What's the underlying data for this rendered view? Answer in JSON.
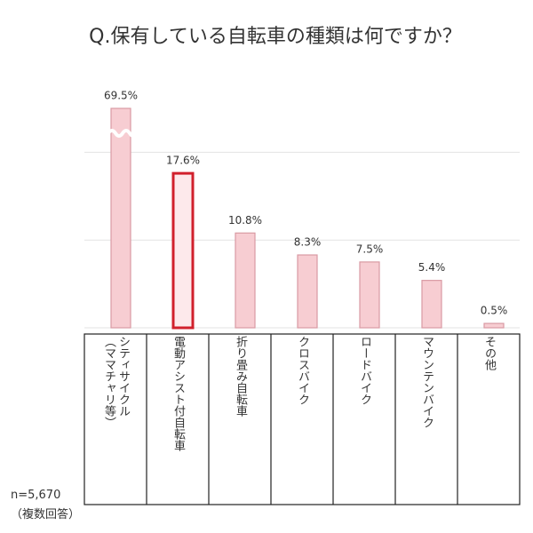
{
  "chart_data": {
    "type": "bar",
    "title": "Q.保有している自転車の種類は何ですか？",
    "categories": [
      "シティサイクル\n（ママチャリ等）",
      "電動アシスト付自転車",
      "折り畳み自転車",
      "クロスバイク",
      "ロードバイク",
      "マウンテンバイク",
      "その他"
    ],
    "values": [
      69.5,
      17.6,
      10.8,
      8.3,
      7.5,
      5.4,
      0.5
    ],
    "value_labels": [
      "69.5%",
      "17.6%",
      "10.8%",
      "8.3%",
      "7.5%",
      "5.4%",
      "0.5%"
    ],
    "colors": [
      "#f7cdd2",
      "#fde9eb",
      "#f7cdd2",
      "#f7cdd2",
      "#f7cdd2",
      "#f7cdd2",
      "#f7cdd2"
    ],
    "edge_colors": [
      "#d99aa3",
      "#d1202c",
      "#d99aa3",
      "#d99aa3",
      "#d99aa3",
      "#d99aa3",
      "#d99aa3"
    ],
    "ylim": [
      0,
      25
    ],
    "yticks": [
      0,
      10,
      20
    ],
    "grid": true,
    "note": "n=5,670",
    "note2": "（複数回答）"
  }
}
